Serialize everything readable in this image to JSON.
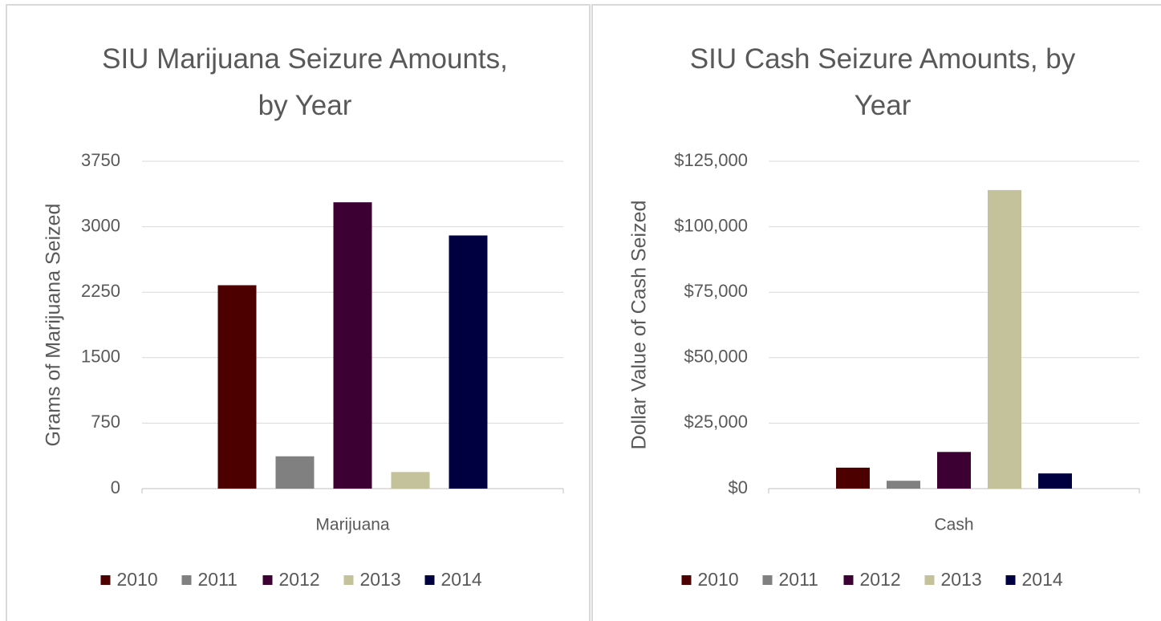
{
  "chart_data": [
    {
      "type": "bar",
      "title": "SIU Marijuana Seizure Amounts, by Year",
      "y_label": "Grams of Marijuana Seized",
      "categories": [
        "Marijuana"
      ],
      "series": [
        {
          "name": "2010",
          "color": "#4d0000",
          "values": [
            2330
          ]
        },
        {
          "name": "2011",
          "color": "#808080",
          "values": [
            370
          ]
        },
        {
          "name": "2012",
          "color": "#3d0033",
          "values": [
            3280
          ]
        },
        {
          "name": "2013",
          "color": "#c4c29a",
          "values": [
            190
          ]
        },
        {
          "name": "2014",
          "color": "#000040",
          "values": [
            2900
          ]
        }
      ],
      "ylim": [
        0,
        3750
      ],
      "yticks": [
        0,
        750,
        1500,
        2250,
        3000,
        3750
      ],
      "grid": true,
      "legend": "bottom"
    },
    {
      "type": "bar",
      "title": "SIU Cash Seizure Amounts, by Year",
      "y_label": "Dollar Value of Cash Seized",
      "categories": [
        "Cash"
      ],
      "series": [
        {
          "name": "2010",
          "color": "#4d0000",
          "values": [
            8000
          ]
        },
        {
          "name": "2011",
          "color": "#808080",
          "values": [
            3000
          ]
        },
        {
          "name": "2012",
          "color": "#3d0033",
          "values": [
            14000
          ]
        },
        {
          "name": "2013",
          "color": "#c4c29a",
          "values": [
            114000
          ]
        },
        {
          "name": "2014",
          "color": "#000040",
          "values": [
            5800
          ]
        }
      ],
      "ylim": [
        0,
        125000
      ],
      "yticks": [
        {
          "value": 0,
          "label": "$0"
        },
        {
          "value": 25000,
          "label": "$25,000"
        },
        {
          "value": 50000,
          "label": "$50,000"
        },
        {
          "value": 75000,
          "label": "$75,000"
        },
        {
          "value": 100000,
          "label": "$100,000"
        },
        {
          "value": 125000,
          "label": "$125,000"
        }
      ],
      "grid": true,
      "legend": "bottom"
    }
  ]
}
